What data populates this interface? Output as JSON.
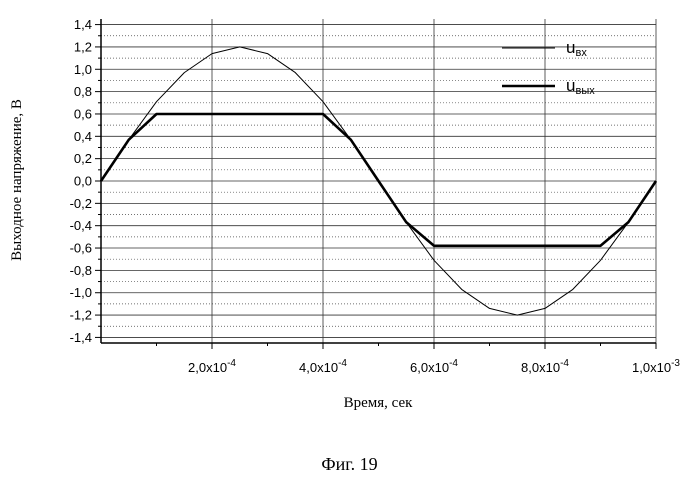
{
  "figure_caption": "Фиг. 19",
  "chart_data": {
    "type": "line",
    "xlabel": "Время, сек",
    "ylabel": "Выходное напряжение, В",
    "xlim": [
      0,
      0.001
    ],
    "ylim": [
      -1.45,
      1.45
    ],
    "x_ticks": [
      {
        "value": 0.0002,
        "mantissa": "2,0x10",
        "exponent": "-4"
      },
      {
        "value": 0.0004,
        "mantissa": "4,0x10",
        "exponent": "-4"
      },
      {
        "value": 0.0006,
        "mantissa": "6,0x10",
        "exponent": "-4"
      },
      {
        "value": 0.0008,
        "mantissa": "8,0x10",
        "exponent": "-4"
      },
      {
        "value": 0.001,
        "mantissa": "1,0x10",
        "exponent": "-3"
      }
    ],
    "y_ticks": [
      {
        "value": 1.4,
        "label": "1,4"
      },
      {
        "value": 1.2,
        "label": "1,2"
      },
      {
        "value": 1.0,
        "label": "1,0"
      },
      {
        "value": 0.8,
        "label": "0,8"
      },
      {
        "value": 0.6,
        "label": "0,6"
      },
      {
        "value": 0.4,
        "label": "0,4"
      },
      {
        "value": 0.2,
        "label": "0,2"
      },
      {
        "value": 0.0,
        "label": "0,0"
      },
      {
        "value": -0.2,
        "label": "-0,2"
      },
      {
        "value": -0.4,
        "label": "-0,4"
      },
      {
        "value": -0.6,
        "label": "-0,6"
      },
      {
        "value": -0.8,
        "label": "-0,8"
      },
      {
        "value": -1.0,
        "label": "-1,0"
      },
      {
        "value": -1.2,
        "label": "-1,2"
      },
      {
        "value": -1.4,
        "label": "-1,4"
      }
    ],
    "grid": true,
    "legend_position": "top-right",
    "series": [
      {
        "legend_main": "u",
        "legend_sub": "вх",
        "style": "thin",
        "x": [
          0,
          5e-05,
          0.0001,
          0.00015,
          0.0002,
          0.00025,
          0.0003,
          0.00035,
          0.0004,
          0.00045,
          0.0005,
          0.00055,
          0.0006,
          0.00065,
          0.0007,
          0.00075,
          0.0008,
          0.00085,
          0.0009,
          0.00095,
          0.001
        ],
        "y": [
          0.0,
          0.37,
          0.71,
          0.97,
          1.14,
          1.2,
          1.14,
          0.97,
          0.71,
          0.37,
          0.0,
          -0.37,
          -0.71,
          -0.97,
          -1.14,
          -1.2,
          -1.14,
          -0.97,
          -0.71,
          -0.37,
          0.0
        ]
      },
      {
        "legend_main": "u",
        "legend_sub": "вых",
        "style": "thick",
        "x": [
          0,
          5e-05,
          0.0001,
          0.0002,
          0.00025,
          0.0003,
          0.0004,
          0.00045,
          0.0005,
          0.00055,
          0.0006,
          0.0007,
          0.00075,
          0.0008,
          0.0009,
          0.00095,
          0.001
        ],
        "y": [
          0.0,
          0.37,
          0.6,
          0.6,
          0.6,
          0.6,
          0.6,
          0.37,
          0.0,
          -0.37,
          -0.58,
          -0.58,
          -0.58,
          -0.58,
          -0.58,
          -0.37,
          0.0
        ]
      }
    ]
  }
}
